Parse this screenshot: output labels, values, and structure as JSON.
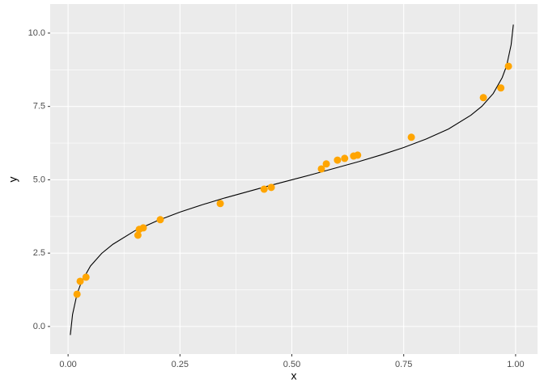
{
  "chart_data": {
    "type": "scatter",
    "x_label": "x",
    "y_label": "y",
    "xlim": [
      -0.04,
      1.049
    ],
    "ylim": [
      -0.94,
      10.99
    ],
    "xticks": [
      {
        "value": 0,
        "label": "0.00"
      },
      {
        "value": 0.25,
        "label": "0.25"
      },
      {
        "value": 0.5,
        "label": "0.50"
      },
      {
        "value": 0.75,
        "label": "0.75"
      },
      {
        "value": 1,
        "label": "1.00"
      }
    ],
    "yticks": [
      {
        "value": 0,
        "label": "0.0"
      },
      {
        "value": 2.5,
        "label": "2.5"
      },
      {
        "value": 5,
        "label": "5.0"
      },
      {
        "value": 7.5,
        "label": "7.5"
      },
      {
        "value": 10,
        "label": "10.0"
      }
    ],
    "grid": true,
    "minor_grid": true,
    "background": "#ebebeb",
    "series": [
      {
        "type": "line",
        "color": "#000000",
        "x": [
          0.005,
          0.01,
          0.02,
          0.03,
          0.05,
          0.075,
          0.1,
          0.15,
          0.2,
          0.25,
          0.3,
          0.35,
          0.4,
          0.45,
          0.5,
          0.55,
          0.6,
          0.65,
          0.7,
          0.75,
          0.8,
          0.85,
          0.9,
          0.925,
          0.95,
          0.97,
          0.98,
          0.99,
          0.995
        ],
        "values": [
          -0.29,
          0.41,
          1.11,
          1.52,
          2.06,
          2.49,
          2.8,
          3.27,
          3.61,
          3.9,
          4.15,
          4.38,
          4.59,
          4.8,
          5.0,
          5.2,
          5.41,
          5.62,
          5.85,
          6.1,
          6.39,
          6.73,
          7.2,
          7.51,
          7.94,
          8.48,
          8.89,
          9.6,
          10.29
        ]
      },
      {
        "type": "points",
        "color": "#ffa500",
        "x": [
          0.02,
          0.027,
          0.04,
          0.156,
          0.159,
          0.168,
          0.206,
          0.34,
          0.438,
          0.454,
          0.566,
          0.577,
          0.602,
          0.618,
          0.638,
          0.647,
          0.767,
          0.928,
          0.967,
          0.984
        ],
        "values": [
          1.1,
          1.54,
          1.68,
          3.11,
          3.31,
          3.36,
          3.64,
          4.19,
          4.68,
          4.74,
          5.37,
          5.54,
          5.67,
          5.73,
          5.81,
          5.84,
          6.45,
          7.8,
          8.13,
          8.87
        ]
      }
    ]
  }
}
